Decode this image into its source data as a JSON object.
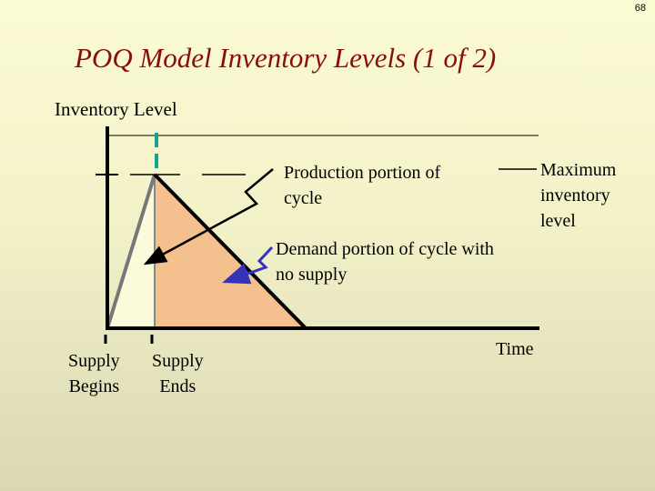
{
  "page_number": "68",
  "title": "POQ Model Inventory Levels (1 of 2)",
  "y_axis_label": "Inventory Level",
  "x_axis_label": "Time",
  "labels": {
    "production": "Production portion of cycle",
    "production_line1": "Production portion of",
    "production_line2": "cycle",
    "max_line1": "Maximum",
    "max_line2": "inventory",
    "max_line3": "level",
    "demand_line1": "Demand portion of cycle with",
    "demand_line2": "no supply",
    "supply_begins_line1": "Supply",
    "supply_begins_line2": "Begins",
    "supply_ends_line1": "Supply",
    "supply_ends_line2": "Ends"
  },
  "colors": {
    "title": "#8a0d0d",
    "production_fill": "#fbfbdc",
    "demand_fill": "#f4c08e",
    "teal_marker": "#14a38f",
    "demand_arrow": "#3333bb"
  }
}
